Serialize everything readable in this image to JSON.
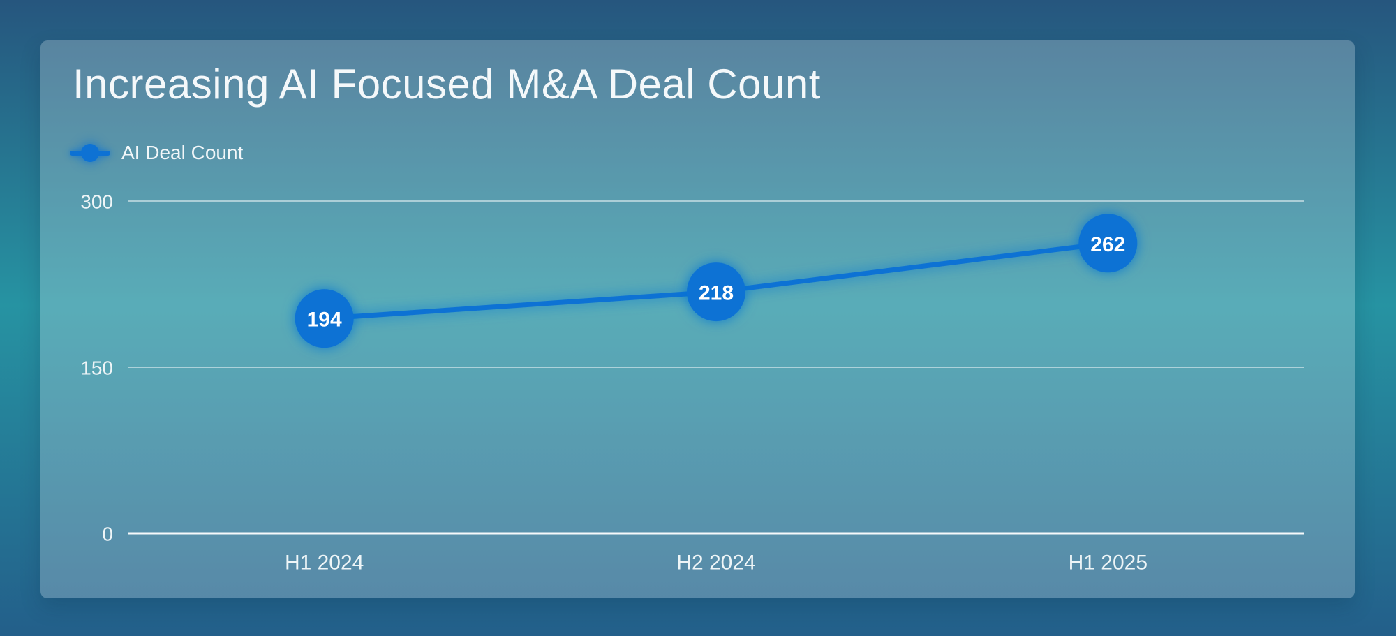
{
  "legend": {
    "items": [
      {
        "label": "AI Deal Count",
        "marker": "line-dot-marker",
        "color": "#0e72d4"
      }
    ]
  },
  "chart_data": {
    "type": "line",
    "title": "Increasing AI Focused M&A Deal Count",
    "categories": [
      "H1 2024",
      "H2 2024",
      "H1 2025"
    ],
    "series": [
      {
        "name": "AI Deal Count",
        "values": [
          194,
          218,
          262
        ],
        "color": "#0e72d4"
      }
    ],
    "point_labels": [
      "194",
      "218",
      "262"
    ],
    "xlabel": "",
    "ylabel": "",
    "ylim": [
      0,
      300
    ],
    "yticks": [
      0,
      150,
      300
    ],
    "grid": "horizontal",
    "legend_position": "top-left",
    "colors": {
      "accent_blue": "#0e72d4",
      "gridline": "rgba(255,255,255,0.5)",
      "axis_line": "rgba(255,255,255,0.95)",
      "tick_text": "#eef5f7",
      "point_label_text": "#ffffff",
      "title_text": "#f4f8fa"
    }
  }
}
